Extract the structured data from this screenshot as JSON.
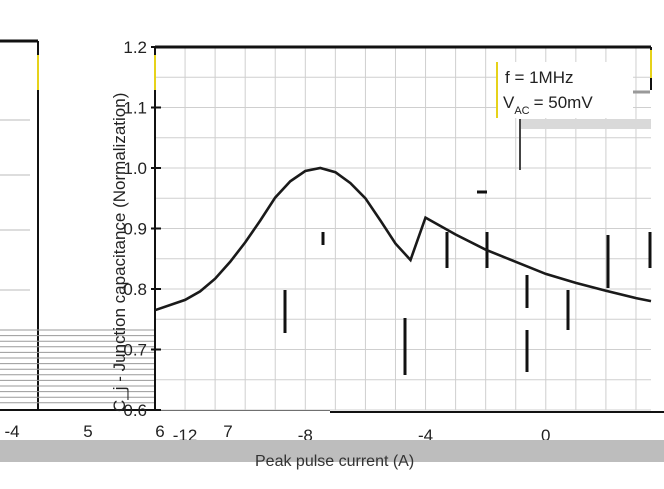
{
  "chart_data": {
    "type": "line",
    "title": "",
    "xlabel": "Peak pulse current (A)",
    "ylabel": "C_j - Junction capacitance (Normalization)",
    "x_ticks": [
      -12,
      -8,
      -4,
      0
    ],
    "y_ticks": [
      "0.6",
      "0.7",
      "0.8",
      "0.9",
      "1.0",
      "1.1",
      "1.2"
    ],
    "xlim": [
      -13,
      3.5
    ],
    "ylim": [
      0.6,
      1.2
    ],
    "grid": true,
    "legend_position": "top-right",
    "series": [
      {
        "x": [
          -13,
          -12,
          -11.5,
          -11,
          -10.5,
          -10,
          -9.5,
          -9,
          -8.5,
          -8,
          -7.5,
          -7,
          -6.5,
          -6,
          -5.5,
          -5,
          -4.5,
          -4,
          -3,
          -2,
          -1,
          0,
          1,
          2,
          3,
          3.5
        ],
        "y": [
          0.765,
          0.782,
          0.796,
          0.817,
          0.845,
          0.877,
          0.913,
          0.951,
          0.978,
          0.995,
          1.0,
          0.993,
          0.975,
          0.95,
          0.913,
          0.875,
          0.848,
          0.918,
          0.89,
          0.865,
          0.845,
          0.825,
          0.81,
          0.797,
          0.785,
          0.78
        ]
      }
    ],
    "annotations": [
      {
        "label": "f = 1MHz"
      },
      {
        "label": "V",
        "sub": "AC",
        "value": "= 50mV"
      }
    ]
  },
  "background_panel": {
    "x_ticks": [
      "-4",
      "5",
      "6",
      "7"
    ]
  }
}
